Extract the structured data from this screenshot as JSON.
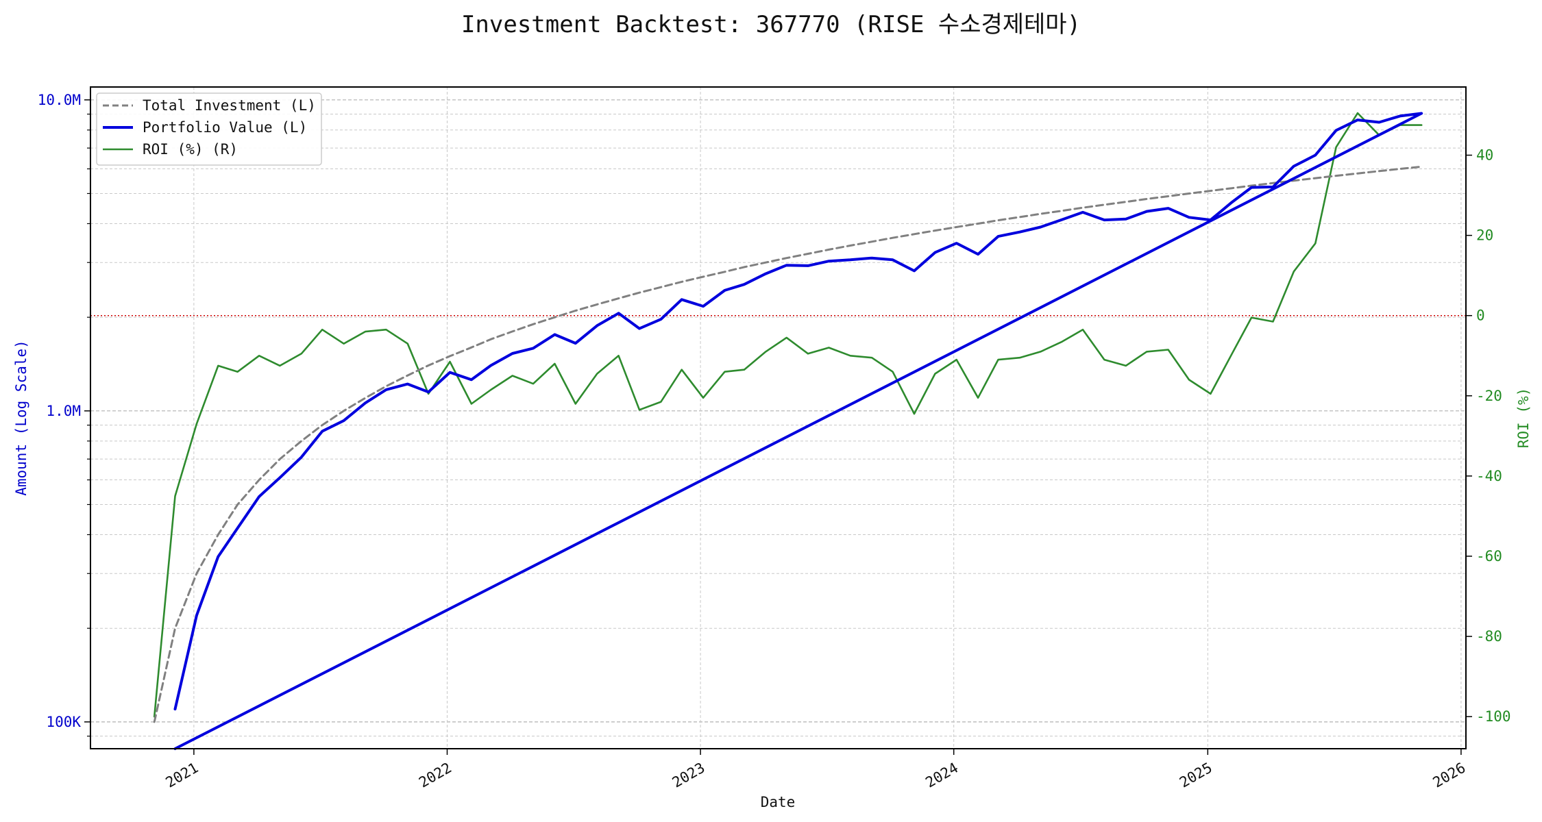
{
  "chart_data": {
    "type": "line",
    "title": "Investment Backtest: 367770 (RISE 수소경제테마)",
    "xlabel": "Date",
    "ylabel_left": "Amount (Log Scale)",
    "ylabel_right": "ROI (%)",
    "left_axis": {
      "scale": "log",
      "ylim": [
        82000,
        11000000
      ],
      "ticks": [
        {
          "value": 100000,
          "label": "100K"
        },
        {
          "value": 1000000,
          "label": "1.0M"
        },
        {
          "value": 10000000,
          "label": "10.0M"
        }
      ],
      "color": "#0000cc"
    },
    "right_axis": {
      "scale": "linear",
      "ylim": [
        -108,
        57
      ],
      "ticks": [
        -100,
        -80,
        -60,
        -40,
        -20,
        0,
        20,
        40
      ],
      "color": "#228b22",
      "reference_line": {
        "value": 0,
        "color": "#cc0000",
        "style": "dotted"
      }
    },
    "x_axis": {
      "range": [
        "2020-08-05",
        "2026-01-08"
      ],
      "ticks": [
        {
          "date": "2021-01-01",
          "label": "2021"
        },
        {
          "date": "2022-01-01",
          "label": "2022"
        },
        {
          "date": "2023-01-01",
          "label": "2023"
        },
        {
          "date": "2024-01-01",
          "label": "2024"
        },
        {
          "date": "2025-01-01",
          "label": "2025"
        },
        {
          "date": "2026-01-01",
          "label": "2026"
        }
      ]
    },
    "grid": true,
    "legend": {
      "position": "top-left",
      "entries": [
        {
          "label": "Total Investment (L)",
          "color": "#808080",
          "style": "dashed"
        },
        {
          "label": "Portfolio Value (L)",
          "color": "#0000dd",
          "style": "solid-thick"
        },
        {
          "label": "ROI (%) (R)",
          "color": "#2e8b2e",
          "style": "solid"
        }
      ]
    },
    "x": [
      "2020-11-05",
      "2020-12-05",
      "2021-01-05",
      "2021-02-05",
      "2021-03-05",
      "2021-04-05",
      "2021-05-05",
      "2021-06-05",
      "2021-07-05",
      "2021-08-05",
      "2021-09-05",
      "2021-10-05",
      "2021-11-05",
      "2021-12-05",
      "2022-01-05",
      "2022-02-05",
      "2022-03-05",
      "2022-04-05",
      "2022-05-05",
      "2022-06-05",
      "2022-07-05",
      "2022-08-05",
      "2022-09-05",
      "2022-10-05",
      "2022-11-05",
      "2022-12-05",
      "2023-01-05",
      "2023-02-05",
      "2023-03-05",
      "2023-04-05",
      "2023-05-05",
      "2023-06-05",
      "2023-07-05",
      "2023-08-05",
      "2023-09-05",
      "2023-10-05",
      "2023-11-05",
      "2023-12-05",
      "2024-01-05",
      "2024-02-05",
      "2024-03-05",
      "2024-04-05",
      "2024-05-05",
      "2024-06-05",
      "2024-07-05",
      "2024-08-05",
      "2024-09-05",
      "2024-10-05",
      "2024-11-05",
      "2024-12-05",
      "2025-01-05",
      "2025-02-05",
      "2025-03-05",
      "2025-04-05",
      "2025-05-05",
      "2025-06-05",
      "2025-07-05",
      "2025-08-05",
      "2025-09-05",
      "2025-10-05",
      "2025-11-05"
    ],
    "series": [
      {
        "name": "Total Investment (L)",
        "axis": "left",
        "values": [
          100000,
          200000,
          300000,
          400000,
          500000,
          600000,
          700000,
          800000,
          900000,
          1000000,
          1100000,
          1200000,
          1300000,
          1400000,
          1500000,
          1600000,
          1700000,
          1800000,
          1900000,
          2000000,
          2100000,
          2200000,
          2300000,
          2400000,
          2500000,
          2600000,
          2700000,
          2800000,
          2900000,
          3000000,
          3100000,
          3200000,
          3300000,
          3400000,
          3500000,
          3600000,
          3700000,
          3800000,
          3900000,
          4000000,
          4100000,
          4200000,
          4300000,
          4400000,
          4500000,
          4600000,
          4700000,
          4800000,
          4900000,
          5000000,
          5100000,
          5200000,
          5300000,
          5400000,
          5500000,
          5600000,
          5700000,
          5800000,
          5900000,
          6000000,
          6100000
        ]
      },
      {
        "name": "Portfolio Value (L)",
        "axis": "left",
        "values": [
          null,
          110000,
          220000,
          340000,
          420000,
          530000,
          610000,
          710000,
          860000,
          930000,
          1060000,
          1170000,
          1220000,
          1150000,
          1330000,
          1260000,
          1400000,
          1530000,
          1590000,
          1760000,
          1650000,
          1880000,
          2060000,
          1840000,
          1970000,
          2280000,
          2170000,
          2440000,
          2550000,
          2760000,
          2940000,
          2930000,
          3030000,
          3060000,
          3100000,
          3060000,
          2820000,
          3230000,
          3460000,
          3190000,
          3640000,
          3760000,
          3900000,
          4120000,
          4350000,
          4110000,
          4140000,
          4380000,
          4480000,
          4190000,
          4110000,
          4690000,
          5230000,
          5250000,
          6120000,
          6640000,
          7980000,
          8620000,
          8470000,
          8870000,
          9050000
        ]
      },
      {
        "name": "ROI (%) (R)",
        "axis": "right",
        "values": [
          -100,
          -45,
          -27,
          -12.5,
          -14,
          -10,
          -12.5,
          -9.5,
          -3.5,
          -7,
          -4,
          -3.5,
          -7,
          -19.5,
          -11.5,
          -22,
          -18.5,
          -15,
          -17,
          -12,
          -22,
          -14.5,
          -10,
          -23.5,
          -21.5,
          -13.5,
          -20.5,
          -14,
          -13.5,
          -9,
          -5.5,
          -9.5,
          -8,
          -10,
          -10.5,
          -14,
          -24.5,
          -14.5,
          -11,
          -20.5,
          -11,
          -10.5,
          -9,
          -6.5,
          -3.5,
          -11,
          -12.5,
          -9,
          -8.5,
          -16,
          -19.5,
          -9.5,
          -0.5,
          -1.5,
          11,
          18,
          42,
          50.5,
          45,
          47.5,
          47.5
        ]
      }
    ]
  }
}
